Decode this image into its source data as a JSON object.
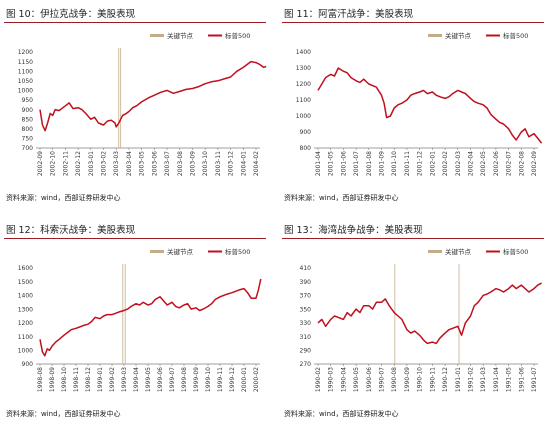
{
  "panels": [
    {
      "title": "图 10：伊拉克战争：美股表现",
      "source": "资料来源：wind，西部证券研发中心",
      "chart_data": {
        "type": "line",
        "legend": [
          "关键节点",
          "标普500"
        ],
        "legend_position": "top-right",
        "ylim": [
          700,
          1200
        ],
        "yticks": [
          700,
          750,
          800,
          850,
          900,
          950,
          1000,
          1050,
          1100,
          1150,
          1200
        ],
        "xtick_labels": [
          "2002-09",
          "2002-10",
          "2002-11",
          "2002-12",
          "2003-01",
          "2003-02",
          "2003-03",
          "2003-04",
          "2003-05",
          "2003-06",
          "2003-07",
          "2003-08",
          "2003-09",
          "2003-10",
          "2003-11",
          "2003-12",
          "2004-01",
          "2004-02"
        ],
        "key_dates": [
          6.2,
          6.35
        ],
        "series": [
          {
            "name": "标普500",
            "x": [
              0,
              0.2,
              0.4,
              0.6,
              0.8,
              1,
              1.2,
              1.5,
              1.8,
              2,
              2.3,
              2.6,
              3,
              3.3,
              3.6,
              4,
              4.3,
              4.6,
              5,
              5.3,
              5.6,
              5.9,
              6,
              6.2,
              6.5,
              6.8,
              7,
              7.3,
              7.6,
              8,
              8.5,
              9,
              9.5,
              10,
              10.5,
              11,
              11.5,
              12,
              12.5,
              13,
              13.5,
              14,
              14.5,
              15,
              15.5,
              16,
              16.3,
              16.6,
              17,
              17.3,
              17.6,
              17.8
            ],
            "y": [
              900,
              820,
              790,
              830,
              880,
              870,
              900,
              895,
              910,
              920,
              935,
              905,
              910,
              900,
              880,
              850,
              860,
              830,
              820,
              840,
              845,
              830,
              810,
              830,
              870,
              880,
              890,
              910,
              920,
              940,
              960,
              975,
              990,
              1000,
              985,
              995,
              1005,
              1010,
              1020,
              1035,
              1045,
              1050,
              1060,
              1070,
              1100,
              1120,
              1135,
              1150,
              1145,
              1135,
              1120,
              1125
            ]
          }
        ]
      }
    },
    {
      "title": "图 11：阿富汗战争：美股表现",
      "source": "资料来源：wind，西部证券研发中心",
      "chart_data": {
        "type": "line",
        "legend": [
          "关键节点",
          "标普500"
        ],
        "legend_position": "top-right",
        "ylim": [
          800,
          1400
        ],
        "yticks": [
          800,
          900,
          1000,
          1100,
          1200,
          1300,
          1400
        ],
        "xtick_labels": [
          "2001-04",
          "2001-05",
          "2001-06",
          "2001-07",
          "2001-08",
          "2001-09",
          "2001-10",
          "2001-11",
          "2001-12",
          "2002-01",
          "2002-02",
          "2002-03",
          "2002-04",
          "2002-05",
          "2002-06",
          "2002-07",
          "2002-08",
          "2002-09"
        ],
        "key_dates": [],
        "series": [
          {
            "name": "标普500",
            "x": [
              0,
              0.3,
              0.6,
              1,
              1.3,
              1.6,
              2,
              2.3,
              2.6,
              3,
              3.3,
              3.6,
              4,
              4.3,
              4.6,
              5,
              5.2,
              5.4,
              5.7,
              6,
              6.3,
              6.6,
              7,
              7.3,
              7.6,
              8,
              8.3,
              8.6,
              9,
              9.3,
              9.6,
              10,
              10.3,
              10.6,
              11,
              11.3,
              11.6,
              12,
              12.3,
              12.6,
              13,
              13.3,
              13.6,
              14,
              14.3,
              14.6,
              15,
              15.3,
              15.6,
              16,
              16.3,
              16.6,
              17,
              17.3,
              17.6
            ],
            "y": [
              1160,
              1200,
              1240,
              1260,
              1250,
              1300,
              1280,
              1270,
              1240,
              1220,
              1210,
              1230,
              1200,
              1190,
              1180,
              1130,
              1080,
              990,
              1000,
              1050,
              1070,
              1080,
              1100,
              1130,
              1140,
              1150,
              1160,
              1140,
              1150,
              1130,
              1120,
              1110,
              1120,
              1140,
              1160,
              1150,
              1140,
              1110,
              1090,
              1080,
              1070,
              1050,
              1010,
              980,
              960,
              950,
              920,
              880,
              850,
              900,
              920,
              870,
              890,
              860,
              830
            ]
          }
        ]
      }
    },
    {
      "title": "图 12：科索沃战争：美股表现",
      "source": "资料来源：wind，西部证券研发中心",
      "chart_data": {
        "type": "line",
        "legend": [
          "关键节点",
          "标普500"
        ],
        "legend_position": "top-right",
        "ylim": [
          900,
          1600
        ],
        "yticks": [
          900,
          1000,
          1100,
          1200,
          1300,
          1400,
          1500,
          1600
        ],
        "xtick_labels": [
          "1998-08",
          "1998-09",
          "1998-10",
          "1998-11",
          "1998-12",
          "1999-01",
          "1999-02",
          "1999-03",
          "1999-04",
          "1999-05",
          "1999-06",
          "1999-07",
          "1999-08",
          "1999-09",
          "1999-10",
          "1999-11",
          "1999-12",
          "2000-01",
          "2000-02"
        ],
        "key_dates": [
          6.9,
          7.1
        ],
        "series": [
          {
            "name": "标普500",
            "x": [
              0,
              0.2,
              0.4,
              0.6,
              0.8,
              1,
              1.3,
              1.6,
              2,
              2.3,
              2.6,
              3,
              3.3,
              3.6,
              4,
              4.3,
              4.6,
              5,
              5.3,
              5.6,
              6,
              6.3,
              6.6,
              7,
              7.3,
              7.6,
              8,
              8.3,
              8.6,
              9,
              9.3,
              9.6,
              10,
              10.3,
              10.6,
              11,
              11.3,
              11.6,
              12,
              12.3,
              12.6,
              13,
              13.3,
              13.6,
              14,
              14.3,
              14.6,
              15,
              15.3,
              15.6,
              16,
              16.3,
              16.6,
              17,
              17.3,
              17.6,
              18,
              18.2,
              18.4
            ],
            "y": [
              1080,
              990,
              960,
              1010,
              1000,
              1030,
              1060,
              1080,
              1110,
              1130,
              1150,
              1160,
              1170,
              1180,
              1190,
              1210,
              1240,
              1230,
              1250,
              1260,
              1260,
              1270,
              1280,
              1290,
              1300,
              1320,
              1340,
              1330,
              1350,
              1330,
              1340,
              1370,
              1390,
              1360,
              1330,
              1350,
              1320,
              1310,
              1330,
              1340,
              1300,
              1310,
              1290,
              1300,
              1320,
              1340,
              1370,
              1390,
              1400,
              1410,
              1420,
              1430,
              1440,
              1450,
              1420,
              1380,
              1380,
              1440,
              1520
            ]
          }
        ]
      }
    },
    {
      "title": "图 13：海湾战争战争：美股表现",
      "source": "资料来源：wind，西部证券研发中心",
      "chart_data": {
        "type": "line",
        "legend": [
          "关键节点",
          "标普500"
        ],
        "legend_position": "top-right",
        "ylim": [
          270,
          410
        ],
        "yticks": [
          270,
          290,
          310,
          330,
          350,
          370,
          390,
          410
        ],
        "xtick_labels": [
          "1990-02",
          "1990-03",
          "1990-04",
          "1990-05",
          "1990-06",
          "1990-07",
          "1990-08",
          "1990-09",
          "1990-10",
          "1990-11",
          "1990-12",
          "1991-01",
          "1991-02",
          "1991-03",
          "1991-04",
          "1991-05",
          "1991-06",
          "1991-07"
        ],
        "key_dates": [
          6.05,
          11.1
        ],
        "series": [
          {
            "name": "标普500",
            "x": [
              0,
              0.3,
              0.6,
              1,
              1.3,
              1.6,
              2,
              2.3,
              2.6,
              3,
              3.3,
              3.6,
              4,
              4.3,
              4.6,
              5,
              5.3,
              5.6,
              6,
              6.3,
              6.6,
              7,
              7.3,
              7.6,
              8,
              8.3,
              8.6,
              9,
              9.3,
              9.6,
              10,
              10.3,
              10.6,
              11,
              11.3,
              11.6,
              12,
              12.3,
              12.6,
              13,
              13.3,
              13.6,
              14,
              14.3,
              14.6,
              15,
              15.3,
              15.6,
              16,
              16.3,
              16.6,
              17,
              17.3,
              17.6
            ],
            "y": [
              330,
              335,
              325,
              335,
              340,
              338,
              335,
              345,
              340,
              350,
              345,
              355,
              355,
              350,
              360,
              360,
              365,
              355,
              345,
              340,
              335,
              320,
              315,
              318,
              312,
              305,
              300,
              302,
              300,
              308,
              315,
              320,
              322,
              325,
              312,
              330,
              340,
              355,
              360,
              370,
              372,
              375,
              380,
              378,
              375,
              380,
              385,
              380,
              385,
              380,
              375,
              380,
              385,
              388
            ]
          }
        ]
      }
    }
  ],
  "colors": {
    "line": "#c0101e",
    "key_date": "#c6ad88",
    "axis": "#7f7f7f",
    "title_rule": "#9b1c24"
  }
}
